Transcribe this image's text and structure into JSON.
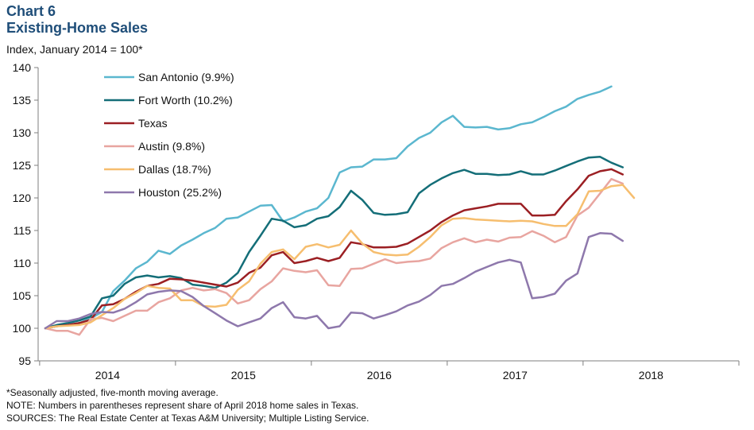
{
  "chart_data": {
    "type": "line",
    "title": "Chart 6",
    "subtitle": "Existing-Home Sales",
    "ylabel": "Index, January 2014 = 100*",
    "xlabel": "",
    "ylim": [
      95,
      140
    ],
    "yticks": [
      95,
      100,
      105,
      110,
      115,
      120,
      125,
      130,
      135,
      140
    ],
    "xlim": [
      0,
      51
    ],
    "xtick_labels": [
      "2014",
      "2015",
      "2016",
      "2017",
      "2018"
    ],
    "x_unit": "months since January 2014 (0 = Jan 2014)",
    "legend_position": "top-left",
    "grid": false,
    "series": [
      {
        "name": "San Antonio (9.9%)",
        "color": "#5bb7cf",
        "values": [
          100,
          100.3,
          100.5,
          100.8,
          101.5,
          102.5,
          105.7,
          107.3,
          109.2,
          110.2,
          111.9,
          111.4,
          112.7,
          113.6,
          114.6,
          115.4,
          116.8,
          117.0,
          117.9,
          118.8,
          118.9,
          116.4,
          117.0,
          117.9,
          118.4,
          120.0,
          123.9,
          124.7,
          124.8,
          125.9,
          125.9,
          126.1,
          127.9,
          129.2,
          130.0,
          131.6,
          132.6,
          130.9,
          130.8,
          130.9,
          130.5,
          130.7,
          131.3,
          131.6,
          132.4,
          133.3,
          134.0,
          135.2,
          135.8,
          136.3,
          137.1
        ]
      },
      {
        "name": "Fort Worth (10.2%)",
        "color": "#146e78",
        "values": [
          100,
          100.5,
          100.8,
          101.2,
          101.8,
          104.6,
          105.0,
          106.8,
          107.8,
          108.1,
          107.8,
          108.0,
          107.7,
          106.7,
          106.5,
          106.2,
          107.0,
          108.5,
          111.7,
          114.2,
          116.8,
          116.5,
          115.5,
          115.8,
          116.8,
          117.2,
          118.6,
          121.1,
          119.7,
          117.7,
          117.4,
          117.5,
          117.8,
          120.7,
          122.0,
          123.0,
          123.8,
          124.3,
          123.7,
          123.7,
          123.5,
          123.6,
          124.1,
          123.6,
          123.6,
          124.2,
          124.9,
          125.6,
          126.2,
          126.3,
          125.4,
          124.7
        ]
      },
      {
        "name": "Texas",
        "color": "#9b1f23",
        "values": [
          100,
          100.3,
          100.5,
          100.8,
          101.3,
          103.5,
          103.7,
          104.5,
          105.6,
          106.5,
          106.8,
          107.6,
          107.5,
          107.3,
          107.0,
          106.7,
          106.4,
          107.0,
          108.5,
          109.3,
          111.2,
          111.7,
          110.0,
          110.3,
          110.8,
          110.3,
          110.8,
          113.2,
          112.9,
          112.4,
          112.4,
          112.5,
          113.0,
          114.0,
          115.0,
          116.3,
          117.3,
          118.1,
          118.4,
          118.7,
          119.1,
          119.1,
          119.1,
          117.3,
          117.3,
          117.4,
          119.5,
          121.3,
          123.4,
          124.1,
          124.4,
          123.6
        ]
      },
      {
        "name": "Austin (9.8%)",
        "color": "#e8a5a0",
        "values": [
          100,
          99.6,
          99.6,
          99.0,
          101.4,
          101.6,
          101.1,
          101.9,
          102.7,
          102.7,
          104.0,
          104.6,
          105.8,
          106.2,
          105.8,
          106.0,
          105.4,
          103.8,
          104.3,
          106.0,
          107.2,
          109.2,
          108.8,
          108.6,
          108.9,
          106.6,
          106.5,
          109.1,
          109.2,
          109.9,
          110.6,
          110.0,
          110.2,
          110.3,
          110.7,
          112.3,
          113.2,
          113.8,
          113.2,
          113.6,
          113.3,
          113.9,
          114.0,
          114.9,
          114.2,
          113.2,
          114.0,
          117.3,
          118.5,
          120.7,
          122.9,
          122.2
        ]
      },
      {
        "name": "Dallas (18.7%)",
        "color": "#f6be6f",
        "values": [
          100,
          100.3,
          100.4,
          100.5,
          100.9,
          102.0,
          103.1,
          104.5,
          105.4,
          106.5,
          106.2,
          106.1,
          104.3,
          104.3,
          103.4,
          103.3,
          103.6,
          105.9,
          107.2,
          109.9,
          111.7,
          112.1,
          110.6,
          112.5,
          112.9,
          112.4,
          112.8,
          115.0,
          113.0,
          111.7,
          111.3,
          111.2,
          111.3,
          112.5,
          114.0,
          115.8,
          116.8,
          116.9,
          116.7,
          116.6,
          116.5,
          116.4,
          116.5,
          116.4,
          116.0,
          115.7,
          115.7,
          117.5,
          121.0,
          121.1,
          121.8,
          122.0,
          120.0
        ]
      },
      {
        "name": "Houston (25.2%)",
        "color": "#8e78ac",
        "values": [
          100,
          101.1,
          101.1,
          101.5,
          102.2,
          102.5,
          102.4,
          103.0,
          104.0,
          105.2,
          105.6,
          105.8,
          105.7,
          104.8,
          103.4,
          102.3,
          101.2,
          100.3,
          100.9,
          101.5,
          103.1,
          104.0,
          101.7,
          101.5,
          101.9,
          100.0,
          100.3,
          102.4,
          102.3,
          101.5,
          102.0,
          102.6,
          103.5,
          104.1,
          105.1,
          106.5,
          106.8,
          107.7,
          108.7,
          109.4,
          110.1,
          110.5,
          110.1,
          104.6,
          104.8,
          105.3,
          107.3,
          108.4,
          114.0,
          114.6,
          114.5,
          113.4
        ]
      }
    ]
  },
  "footnotes": {
    "f1": "*Seasonally adjusted, five-month  moving average.",
    "f2": "NOTE: Numbers in parentheses represent share of April 2018 home sales in Texas.",
    "f3": "SOURCES: The Real Estate Center at Texas A&M University; Multiple Listing Service."
  }
}
